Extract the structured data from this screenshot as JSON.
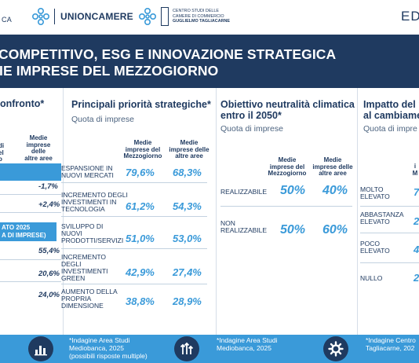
{
  "header": {
    "logo_fragment": "CA",
    "brand": "UNIONCAMERE",
    "centro_lines": [
      "CENTRO STUDI DELLE",
      "CAMERE DI COMMERCIO",
      "GUGLIELMO TAGLIACARNE"
    ],
    "edition_fragment": "ED"
  },
  "title": {
    "line1": "COMPETITIVO, ESG E INNOVAZIONE STRATEGICA",
    "line2": "IE IMPRESE DEL MEZZOGIORNO"
  },
  "panel_confronto": {
    "title": "onfronto*",
    "col_head": [
      "Medie",
      "imprese delle",
      "altre aree"
    ],
    "col_head_left": [
      "di",
      "el",
      "o"
    ],
    "rows": [
      "-1,7%",
      "+2,4%"
    ],
    "banner2": [
      "ATO 2025",
      "A DI IMPRESE)"
    ],
    "rows2": [
      "55,4%",
      "20,6%",
      "24,0%"
    ]
  },
  "panel_priorita": {
    "title": "Principali priorità strategiche*",
    "subtitle": "Quota di imprese",
    "col1": [
      "Medie",
      "imprese del",
      "Mezzogiorno"
    ],
    "col2": [
      "Medie",
      "imprese delle",
      "altre aree"
    ],
    "rows": [
      {
        "label": [
          "ESPANSIONE IN",
          "NUOVI MERCATI"
        ],
        "v1": "79,6%",
        "v2": "68,3%"
      },
      {
        "label": [
          "INCREMENTO DEGLI",
          "INVESTIMENTI IN",
          "TECNOLOGIA"
        ],
        "v1": "61,2%",
        "v2": "54,3%"
      },
      {
        "label": [
          "SVILUPPO DI",
          "NUOVI",
          "PRODOTTI/SERVIZI"
        ],
        "v1": "51,0%",
        "v2": "53,0%"
      },
      {
        "label": [
          "INCREMENTO",
          "DEGLI",
          "INVESTIMENTI",
          "GREEN"
        ],
        "v1": "42,9%",
        "v2": "27,4%"
      },
      {
        "label": [
          "AUMENTO DELLA",
          "PROPRIA",
          "DIMENSIONE"
        ],
        "v1": "38,8%",
        "v2": "28,9%"
      }
    ]
  },
  "panel_neutralita": {
    "title": [
      "Obiettivo neutralità climatica",
      "entro il 2050*"
    ],
    "subtitle": "Quota di imprese",
    "col1": [
      "Medie",
      "imprese del",
      "Mezzogiorno"
    ],
    "col2": [
      "Medie",
      "imprese delle",
      "altre aree"
    ],
    "rows": [
      {
        "label": [
          "REALIZZABILE"
        ],
        "v1": "50%",
        "v2": "40%"
      },
      {
        "label": [
          "NON",
          "REALIZZABILE"
        ],
        "v1": "50%",
        "v2": "60%"
      }
    ]
  },
  "panel_impatto": {
    "title": [
      "Impatto del  n",
      "al cambiame"
    ],
    "subtitle": "Quota di impre",
    "col1": [
      "i",
      "M"
    ],
    "rows": [
      {
        "label": [
          "MOLTO",
          "ELEVATO"
        ],
        "v": "7"
      },
      {
        "label": [
          "ABBASTANZA",
          "ELEVATO"
        ],
        "v": "2"
      },
      {
        "label": [
          "POCO",
          "ELEVATO"
        ],
        "v": "4"
      },
      {
        "label": [
          "NULLO"
        ],
        "v": "2"
      }
    ]
  },
  "footer": {
    "note1": [
      "*Indagine Area Studi",
      "Mediobanca, 2025",
      "(possibili risposte multiple)"
    ],
    "note2": [
      "*Indagine Area Studi",
      "Mediobanca, 2025"
    ],
    "note3": [
      "*Indagine Centro",
      "Tagliacarne, 202"
    ],
    "icons": [
      "bar-chart-icon",
      "arrows-up-icon",
      "gear-icon"
    ]
  },
  "colors": {
    "navy": "#1f3a60",
    "accent": "#3a9ad9"
  }
}
